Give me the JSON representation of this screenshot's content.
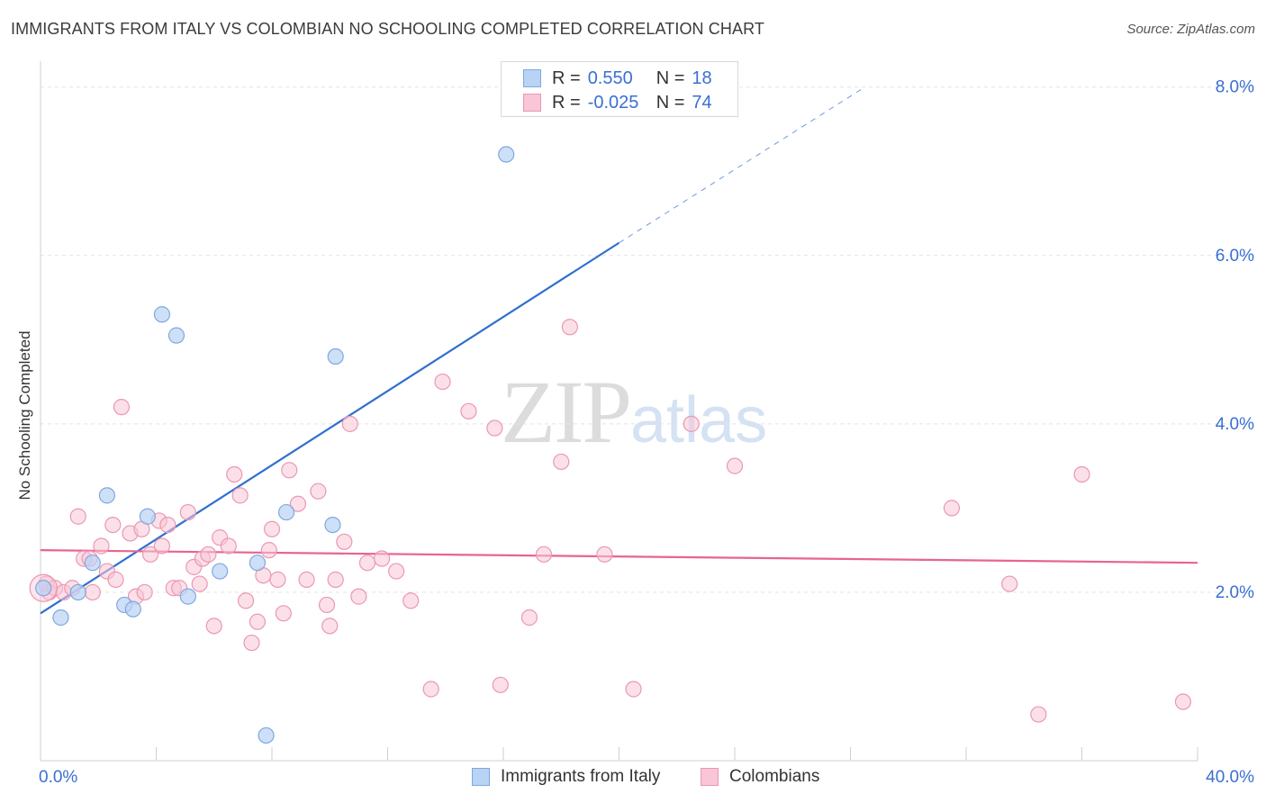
{
  "title": "IMMIGRANTS FROM ITALY VS COLOMBIAN NO SCHOOLING COMPLETED CORRELATION CHART",
  "source": "Source: ZipAtlas.com",
  "watermark": {
    "zip": "ZIP",
    "atlas": "atlas"
  },
  "legend": {
    "italy": {
      "r_label": "R =",
      "r_value": "0.550",
      "n_label": "N =",
      "n_value": "18"
    },
    "colombia": {
      "r_label": "R =",
      "r_value": "-0.025",
      "n_label": "N =",
      "n_value": "74"
    }
  },
  "bottom_legend": {
    "italy": "Immigrants from Italy",
    "colombia": "Colombians"
  },
  "colors": {
    "italy_fill": "#b9d3f5",
    "italy_stroke": "#7fa8de",
    "italy_line": "#2f6fd0",
    "colombia_fill": "#f8c6d6",
    "colombia_stroke": "#eb97b4",
    "colombia_line": "#e8648f",
    "grid": "#e3e3e3",
    "tick_label": "#3a6fd1"
  },
  "chart_data": {
    "type": "scatter",
    "title": "IMMIGRANTS FROM ITALY VS COLOMBIAN NO SCHOOLING COMPLETED CORRELATION CHART",
    "xlabel": "",
    "ylabel": "No Schooling Completed",
    "xlim": [
      0,
      40
    ],
    "ylim": [
      0,
      8.2
    ],
    "x_tick_labels": [
      "0.0%",
      "40.0%"
    ],
    "y_ticks": [
      2,
      4,
      6,
      8
    ],
    "y_tick_labels": [
      "2.0%",
      "4.0%",
      "6.0%",
      "8.0%"
    ],
    "series": [
      {
        "name": "Immigrants from Italy",
        "points": [
          [
            0.1,
            2.05
          ],
          [
            0.7,
            1.7
          ],
          [
            1.3,
            2.0
          ],
          [
            1.8,
            2.35
          ],
          [
            2.3,
            3.15
          ],
          [
            2.9,
            1.85
          ],
          [
            3.2,
            1.8
          ],
          [
            3.7,
            2.9
          ],
          [
            4.2,
            5.3
          ],
          [
            4.7,
            5.05
          ],
          [
            5.1,
            1.95
          ],
          [
            6.2,
            2.25
          ],
          [
            7.5,
            2.35
          ],
          [
            7.8,
            0.3
          ],
          [
            8.5,
            2.95
          ],
          [
            10.1,
            2.8
          ],
          [
            10.2,
            4.8
          ],
          [
            16.1,
            7.2
          ]
        ],
        "trend": {
          "x": [
            0,
            20
          ],
          "y": [
            1.75,
            6.15
          ]
        },
        "trend_ext": {
          "x": [
            20,
            28.5
          ],
          "y": [
            6.15,
            8.0
          ]
        }
      },
      {
        "name": "Colombians",
        "points": [
          [
            0.2,
            2.1
          ],
          [
            0.3,
            2.0
          ],
          [
            0.5,
            2.05
          ],
          [
            0.8,
            2.0
          ],
          [
            1.1,
            2.05
          ],
          [
            1.3,
            2.9
          ],
          [
            1.5,
            2.4
          ],
          [
            1.7,
            2.4
          ],
          [
            1.8,
            2.0
          ],
          [
            2.1,
            2.55
          ],
          [
            2.3,
            2.25
          ],
          [
            2.5,
            2.8
          ],
          [
            2.6,
            2.15
          ],
          [
            2.8,
            4.2
          ],
          [
            3.1,
            2.7
          ],
          [
            3.3,
            1.95
          ],
          [
            3.5,
            2.75
          ],
          [
            3.6,
            2.0
          ],
          [
            3.8,
            2.45
          ],
          [
            4.1,
            2.85
          ],
          [
            4.2,
            2.55
          ],
          [
            4.4,
            2.8
          ],
          [
            4.6,
            2.05
          ],
          [
            4.8,
            2.05
          ],
          [
            5.1,
            2.95
          ],
          [
            5.3,
            2.3
          ],
          [
            5.5,
            2.1
          ],
          [
            5.6,
            2.4
          ],
          [
            5.8,
            2.45
          ],
          [
            6.0,
            1.6
          ],
          [
            6.2,
            2.65
          ],
          [
            6.5,
            2.55
          ],
          [
            6.7,
            3.4
          ],
          [
            6.9,
            3.15
          ],
          [
            7.1,
            1.9
          ],
          [
            7.3,
            1.4
          ],
          [
            7.5,
            1.65
          ],
          [
            7.7,
            2.2
          ],
          [
            7.9,
            2.5
          ],
          [
            8.0,
            2.75
          ],
          [
            8.2,
            2.15
          ],
          [
            8.4,
            1.75
          ],
          [
            8.6,
            3.45
          ],
          [
            8.9,
            3.05
          ],
          [
            9.2,
            2.15
          ],
          [
            9.6,
            3.2
          ],
          [
            9.9,
            1.85
          ],
          [
            10.0,
            1.6
          ],
          [
            10.2,
            2.15
          ],
          [
            10.5,
            2.6
          ],
          [
            10.7,
            4.0
          ],
          [
            11.0,
            1.95
          ],
          [
            11.3,
            2.35
          ],
          [
            11.8,
            2.4
          ],
          [
            12.3,
            2.25
          ],
          [
            12.8,
            1.9
          ],
          [
            13.5,
            0.85
          ],
          [
            13.9,
            4.5
          ],
          [
            14.8,
            4.15
          ],
          [
            15.7,
            3.95
          ],
          [
            15.9,
            0.9
          ],
          [
            16.9,
            1.7
          ],
          [
            17.4,
            2.45
          ],
          [
            18.0,
            3.55
          ],
          [
            18.3,
            5.15
          ],
          [
            19.5,
            2.45
          ],
          [
            20.5,
            0.85
          ],
          [
            22.5,
            4.0
          ],
          [
            24.0,
            3.5
          ],
          [
            31.5,
            3.0
          ],
          [
            33.5,
            2.1
          ],
          [
            34.5,
            0.55
          ],
          [
            36.0,
            3.4
          ],
          [
            39.5,
            0.7
          ]
        ],
        "trend": {
          "x": [
            0,
            40
          ],
          "y": [
            2.5,
            2.35
          ]
        }
      }
    ]
  }
}
